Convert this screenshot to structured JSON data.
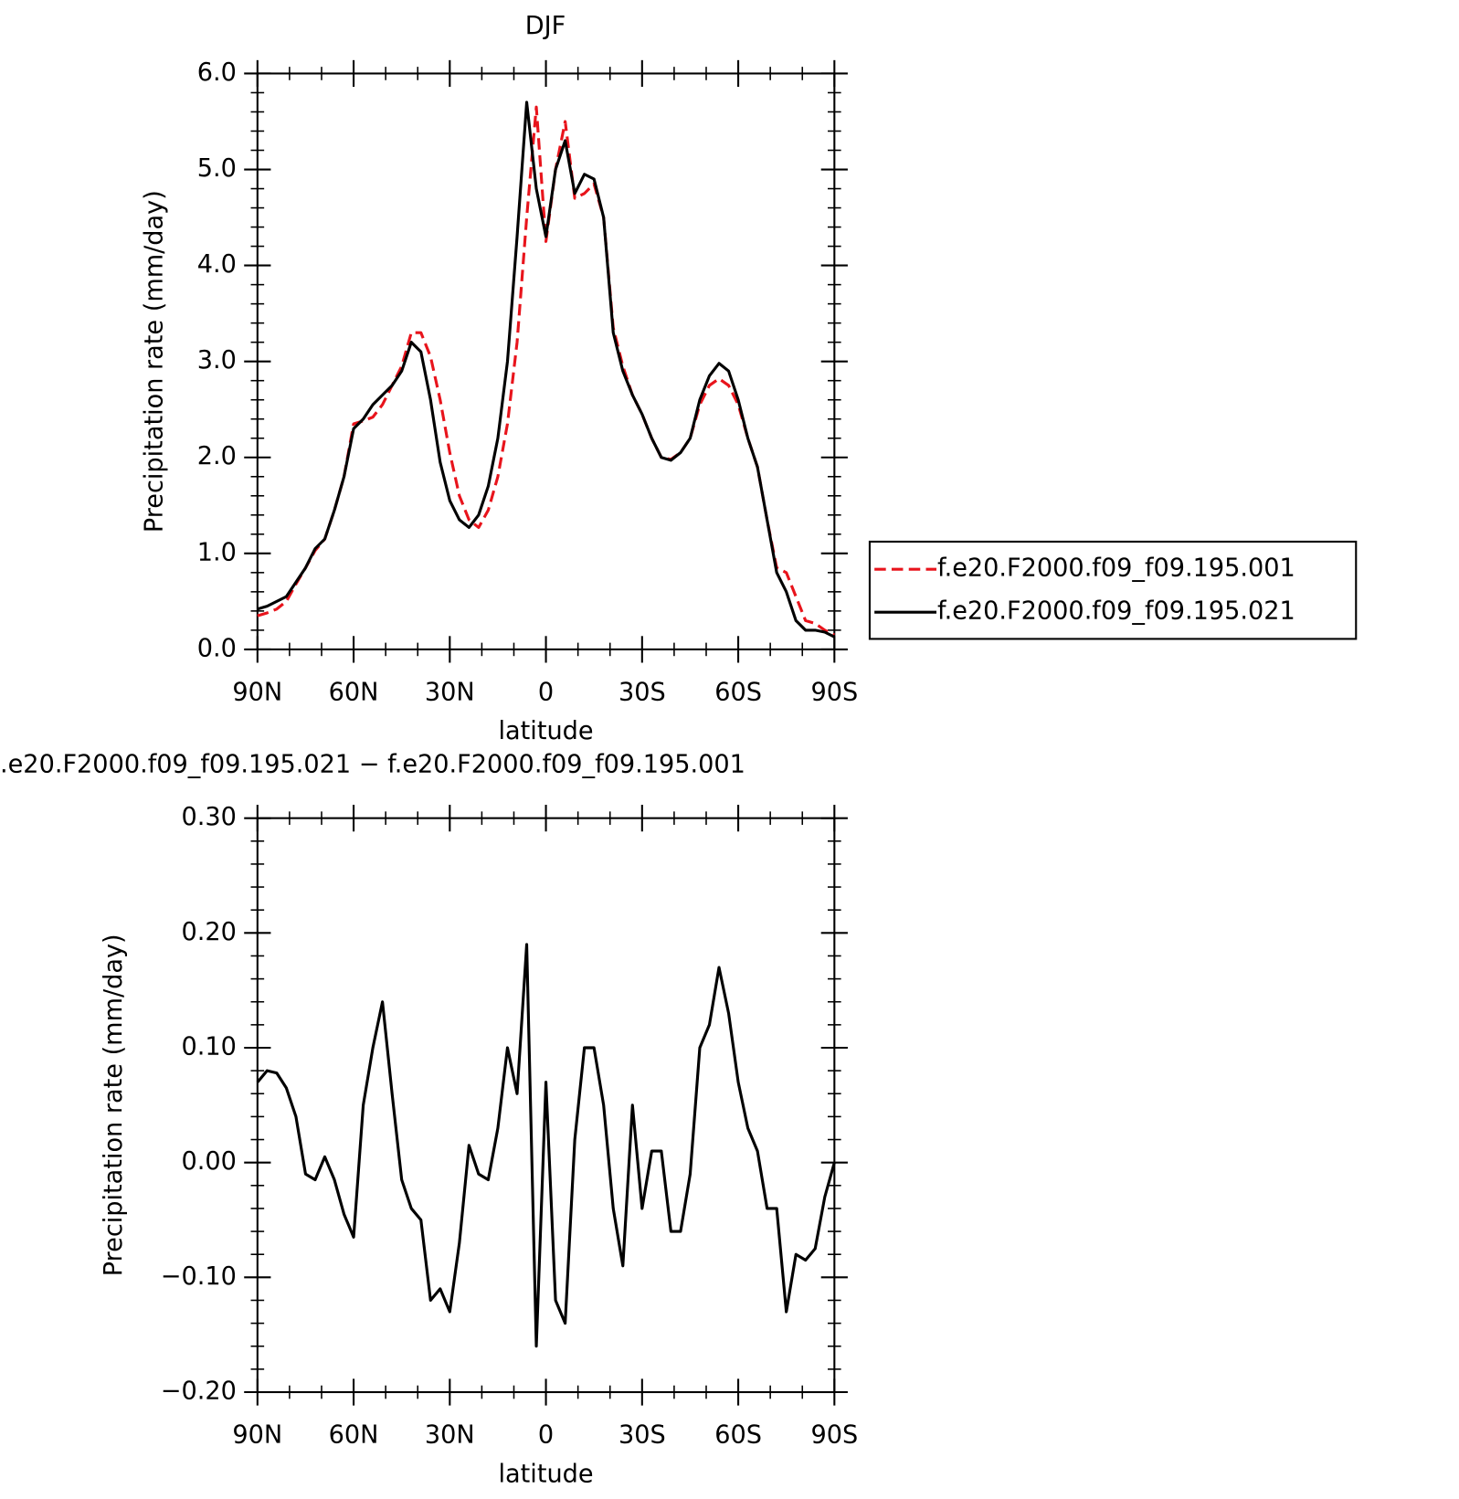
{
  "chart_data": [
    {
      "type": "line",
      "title": "DJF",
      "xlabel": "latitude",
      "ylabel": "Precipitation rate (mm/day)",
      "x": [
        90,
        87,
        84,
        81,
        78,
        75,
        72,
        69,
        66,
        63,
        60,
        57,
        54,
        51,
        48,
        45,
        42,
        39,
        36,
        33,
        30,
        27,
        24,
        21,
        18,
        15,
        12,
        9,
        6,
        3,
        0,
        -3,
        -6,
        -9,
        -12,
        -15,
        -18,
        -21,
        -24,
        -27,
        -30,
        -33,
        -36,
        -39,
        -42,
        -45,
        -48,
        -51,
        -54,
        -57,
        -60,
        -63,
        -66,
        -69,
        -72,
        -75,
        -78,
        -81,
        -84,
        -87,
        -90
      ],
      "series": [
        {
          "name": "f.e20.F2000.f09_f09.195.001",
          "color": "#e8141c",
          "style": "dashed",
          "values": [
            0.35,
            0.38,
            0.42,
            0.5,
            0.68,
            0.85,
            1.03,
            1.15,
            1.45,
            1.8,
            2.35,
            2.38,
            2.42,
            2.55,
            2.75,
            2.95,
            3.3,
            3.3,
            3.05,
            2.6,
            2.05,
            1.6,
            1.35,
            1.27,
            1.45,
            1.8,
            2.35,
            3.2,
            4.5,
            5.65,
            4.25,
            5.0,
            5.5,
            4.7,
            4.75,
            4.85,
            4.5,
            3.35,
            2.95,
            2.65,
            2.45,
            2.2,
            2.0,
            1.98,
            2.05,
            2.2,
            2.55,
            2.75,
            2.82,
            2.75,
            2.55,
            2.2,
            1.9,
            1.35,
            0.85,
            0.8,
            0.55,
            0.3,
            0.27,
            0.2,
            0.15
          ]
        },
        {
          "name": "f.e20.F2000.f09_f09.195.021",
          "color": "#000000",
          "style": "solid",
          "values": [
            0.42,
            0.45,
            0.5,
            0.55,
            0.7,
            0.85,
            1.05,
            1.15,
            1.45,
            1.8,
            2.3,
            2.4,
            2.55,
            2.65,
            2.75,
            2.9,
            3.2,
            3.1,
            2.6,
            1.95,
            1.55,
            1.35,
            1.27,
            1.4,
            1.7,
            2.2,
            3.0,
            4.3,
            5.7,
            4.8,
            4.3,
            5.0,
            5.3,
            4.75,
            4.95,
            4.9,
            4.5,
            3.3,
            2.9,
            2.65,
            2.45,
            2.2,
            2.0,
            1.97,
            2.05,
            2.2,
            2.6,
            2.85,
            2.98,
            2.9,
            2.6,
            2.2,
            1.9,
            1.35,
            0.8,
            0.6,
            0.3,
            0.2,
            0.2,
            0.18,
            0.13
          ]
        }
      ],
      "xlim": [
        90,
        -90
      ],
      "xticks": [
        {
          "value": 90,
          "label": "90N"
        },
        {
          "value": 60,
          "label": "60N"
        },
        {
          "value": 30,
          "label": "30N"
        },
        0,
        {
          "value": -30,
          "label": "30S"
        },
        {
          "value": -60,
          "label": "60S"
        },
        {
          "value": -90,
          "label": "90S"
        }
      ],
      "ylim": [
        0,
        6
      ],
      "yticks": [
        {
          "value": 0,
          "label": "0.0"
        },
        {
          "value": 1,
          "label": "1.0"
        },
        {
          "value": 2,
          "label": "2.0"
        },
        {
          "value": 3,
          "label": "3.0"
        },
        {
          "value": 4,
          "label": "4.0"
        },
        {
          "value": 5,
          "label": "5.0"
        },
        {
          "value": 6,
          "label": "6.0"
        }
      ],
      "legend": "right"
    },
    {
      "type": "line",
      "title": ".e20.F2000.f09_f09.195.021 − f.e20.F2000.f09_f09.195.001",
      "xlabel": "latitude",
      "ylabel": "Precipitation rate (mm/day)",
      "x": [
        90,
        87,
        84,
        81,
        78,
        75,
        72,
        69,
        66,
        63,
        60,
        57,
        54,
        51,
        48,
        45,
        42,
        39,
        36,
        33,
        30,
        27,
        24,
        21,
        18,
        15,
        12,
        9,
        6,
        3,
        0,
        -3,
        -6,
        -9,
        -12,
        -15,
        -18,
        -21,
        -24,
        -27,
        -30,
        -33,
        -36,
        -39,
        -42,
        -45,
        -48,
        -51,
        -54,
        -57,
        -60,
        -63,
        -66,
        -69,
        -72,
        -75,
        -78,
        -81,
        -84,
        -87,
        -90
      ],
      "series": [
        {
          "color": "#000000",
          "style": "solid",
          "values": [
            0.07,
            0.08,
            0.078,
            0.065,
            0.04,
            -0.01,
            -0.015,
            0.005,
            -0.015,
            -0.045,
            -0.065,
            0.05,
            0.1,
            0.14,
            0.06,
            -0.015,
            -0.04,
            -0.05,
            -0.12,
            -0.11,
            -0.13,
            -0.07,
            0.015,
            -0.01,
            -0.015,
            0.03,
            0.1,
            0.06,
            0.19,
            -0.16,
            0.07,
            -0.12,
            -0.14,
            0.02,
            0.1,
            0.1,
            0.05,
            -0.04,
            -0.09,
            0.05,
            -0.04,
            0.01,
            0.01,
            -0.06,
            -0.06,
            -0.01,
            0.1,
            0.12,
            0.17,
            0.13,
            0.07,
            0.03,
            0.01,
            -0.04,
            -0.04,
            -0.13,
            -0.08,
            -0.085,
            -0.075,
            -0.03,
            0.0
          ]
        }
      ],
      "xlim": [
        90,
        -90
      ],
      "xticks": [
        {
          "value": 90,
          "label": "90N"
        },
        {
          "value": 60,
          "label": "60N"
        },
        {
          "value": 30,
          "label": "30N"
        },
        0,
        {
          "value": -30,
          "label": "30S"
        },
        {
          "value": -60,
          "label": "60S"
        },
        {
          "value": -90,
          "label": "90S"
        }
      ],
      "ylim": [
        -0.2,
        0.3
      ],
      "yticks": [
        {
          "value": -0.2,
          "label": "−0.20"
        },
        {
          "value": -0.1,
          "label": "−0.10"
        },
        {
          "value": 0,
          "label": "0.00"
        },
        {
          "value": 0.1,
          "label": "0.10"
        },
        {
          "value": 0.2,
          "label": "0.20"
        },
        {
          "value": 0.3,
          "label": "0.30"
        }
      ]
    }
  ]
}
